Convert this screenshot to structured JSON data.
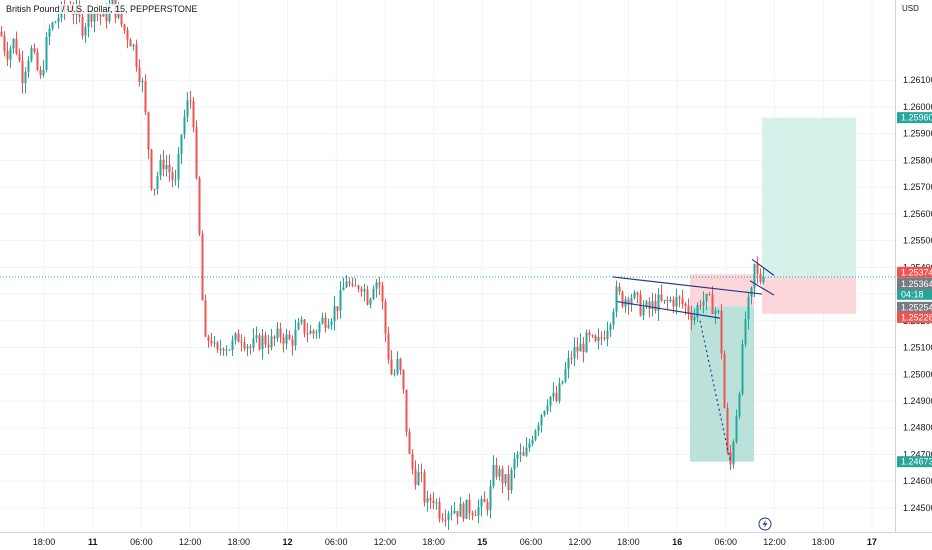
{
  "header": {
    "symbol_title": "British Pound / U.S. Dollar, 15, PEPPERSTONE",
    "currency": "USD"
  },
  "colors": {
    "up": "#26a69a",
    "down": "#ef5350",
    "trendline": "#2a3b8f",
    "target_zone": "#d2eee8",
    "stop_zone": "#fbd3d7",
    "projection_fill": "#b3dfd7",
    "grid": "#f0f3fa",
    "axis_text": "#131722",
    "price_line": "#26a69a"
  },
  "chart_data": {
    "type": "candlestick",
    "ylim": [
      1.2441,
      1.264
    ],
    "y_ticks": [
      "1.24500",
      "1.24600",
      "1.24700",
      "1.24800",
      "1.24900",
      "1.25000",
      "1.25100",
      "1.25200",
      "1.25300",
      "1.25400",
      "1.25500",
      "1.25600",
      "1.25700",
      "1.25800",
      "1.25900",
      "1.26000",
      "1.26100"
    ],
    "x_ticks": [
      "18:00",
      "11",
      "06:00",
      "12:00",
      "18:00",
      "12",
      "06:00",
      "12:00",
      "18:00",
      "15",
      "06:00",
      "12:00",
      "18:00",
      "16",
      "06:00",
      "12:00",
      "18:00",
      "17"
    ],
    "bold_x_ticks": [
      "11",
      "12",
      "15",
      "16",
      "17"
    ],
    "last_price": 1.25364,
    "countdown": "04:18",
    "price_badges": [
      {
        "label": "1.25960",
        "bg": "#26a69a"
      },
      {
        "label": "1.25374",
        "bg": "#ef5350"
      },
      {
        "label": "1.25364",
        "bg": "#26a69a"
      },
      {
        "label": "04:18",
        "bg": "#26a69a"
      },
      {
        "label": "1.25364",
        "bg": "#787b86"
      },
      {
        "label": "1.25254",
        "bg": "#787b86"
      },
      {
        "label": "1.25226",
        "bg": "#ef5350"
      },
      {
        "label": "1.24673",
        "bg": "#26a69a"
      }
    ],
    "path": [
      [
        0,
        1.2628
      ],
      [
        6,
        1.262
      ],
      [
        14,
        1.2625
      ],
      [
        22,
        1.2612
      ],
      [
        30,
        1.2622
      ],
      [
        40,
        1.261
      ],
      [
        48,
        1.2628
      ],
      [
        58,
        1.2634
      ],
      [
        70,
        1.2638
      ],
      [
        82,
        1.263
      ],
      [
        92,
        1.2636
      ],
      [
        104,
        1.2633
      ],
      [
        112,
        1.2639
      ],
      [
        122,
        1.263
      ],
      [
        132,
        1.2624
      ],
      [
        142,
        1.2608
      ],
      [
        148,
        1.2585
      ],
      [
        152,
        1.2568
      ],
      [
        158,
        1.2576
      ],
      [
        164,
        1.258
      ],
      [
        170,
        1.2575
      ],
      [
        176,
        1.257
      ],
      [
        180,
        1.2588
      ],
      [
        186,
        1.26
      ],
      [
        192,
        1.2604
      ],
      [
        196,
        1.257
      ],
      [
        200,
        1.2545
      ],
      [
        204,
        1.251
      ],
      [
        210,
        1.2515
      ],
      [
        216,
        1.2506
      ],
      [
        222,
        1.2512
      ],
      [
        230,
        1.251
      ],
      [
        240,
        1.2515
      ],
      [
        250,
        1.251
      ],
      [
        262,
        1.2513
      ],
      [
        272,
        1.2512
      ],
      [
        280,
        1.2515
      ],
      [
        290,
        1.2512
      ],
      [
        300,
        1.2518
      ],
      [
        312,
        1.2515
      ],
      [
        322,
        1.252
      ],
      [
        332,
        1.2523
      ],
      [
        340,
        1.2528
      ],
      [
        346,
        1.2536
      ],
      [
        352,
        1.253
      ],
      [
        360,
        1.2535
      ],
      [
        368,
        1.2528
      ],
      [
        374,
        1.2536
      ],
      [
        380,
        1.2533
      ],
      [
        386,
        1.2512
      ],
      [
        392,
        1.2498
      ],
      [
        398,
        1.2505
      ],
      [
        404,
        1.249
      ],
      [
        408,
        1.247
      ],
      [
        414,
        1.2462
      ],
      [
        420,
        1.2462
      ],
      [
        426,
        1.245
      ],
      [
        432,
        1.2455
      ],
      [
        440,
        1.2448
      ],
      [
        450,
        1.245
      ],
      [
        460,
        1.2449
      ],
      [
        470,
        1.245
      ],
      [
        480,
        1.245
      ],
      [
        488,
        1.2452
      ],
      [
        494,
        1.2465
      ],
      [
        500,
        1.2462
      ],
      [
        508,
        1.2458
      ],
      [
        516,
        1.247
      ],
      [
        524,
        1.2468
      ],
      [
        532,
        1.2478
      ],
      [
        540,
        1.2485
      ],
      [
        548,
        1.2492
      ],
      [
        556,
        1.249
      ],
      [
        564,
        1.25
      ],
      [
        572,
        1.2508
      ],
      [
        580,
        1.251
      ],
      [
        588,
        1.2513
      ],
      [
        596,
        1.251
      ],
      [
        604,
        1.2516
      ],
      [
        610,
        1.2522
      ],
      [
        616,
        1.253
      ],
      [
        622,
        1.2528
      ],
      [
        630,
        1.253
      ],
      [
        640,
        1.2525
      ],
      [
        648,
        1.2524
      ],
      [
        656,
        1.2527
      ],
      [
        664,
        1.2526
      ],
      [
        672,
        1.2528
      ],
      [
        680,
        1.2527
      ],
      [
        688,
        1.2524
      ],
      [
        694,
        1.2522
      ],
      [
        700,
        1.2528
      ],
      [
        706,
        1.2527
      ],
      [
        712,
        1.2526
      ],
      [
        718,
        1.2522
      ],
      [
        722,
        1.2505
      ],
      [
        726,
        1.247
      ],
      [
        730,
        1.2466
      ],
      [
        734,
        1.248
      ],
      [
        738,
        1.2492
      ],
      [
        742,
        1.2508
      ],
      [
        746,
        1.2525
      ],
      [
        750,
        1.2526
      ],
      [
        754,
        1.254
      ],
      [
        758,
        1.2535
      ],
      [
        762,
        1.2536
      ],
      [
        764,
        1.25364
      ]
    ],
    "x_span": [
      0,
      890
    ],
    "trendlines": [
      {
        "x1": 613,
        "y1": 1.25364,
        "x2": 762,
        "y2": 1.253
      },
      {
        "x1": 617,
        "y1": 1.25272,
        "x2": 720,
        "y2": 1.2521
      },
      {
        "x1": 752,
        "y1": 1.2543,
        "x2": 774,
        "y2": 1.2537
      },
      {
        "x1": 750,
        "y1": 1.2535,
        "x2": 774,
        "y2": 1.25296
      },
      {
        "x1": 700,
        "y1": 1.252,
        "x2": 730,
        "y2": 1.2468
      }
    ],
    "position_zones": [
      {
        "kind": "target",
        "x1": 762,
        "x2": 856,
        "top": 1.2596,
        "bottom": 1.25364
      },
      {
        "kind": "stop",
        "x1": 762,
        "x2": 856,
        "top": 1.25364,
        "bottom": 1.25226
      },
      {
        "kind": "stop",
        "x1": 690,
        "x2": 754,
        "top": 1.25374,
        "bottom": 1.25254
      },
      {
        "kind": "projection",
        "x1": 690,
        "x2": 754,
        "top": 1.25254,
        "bottom": 1.24673
      }
    ]
  }
}
